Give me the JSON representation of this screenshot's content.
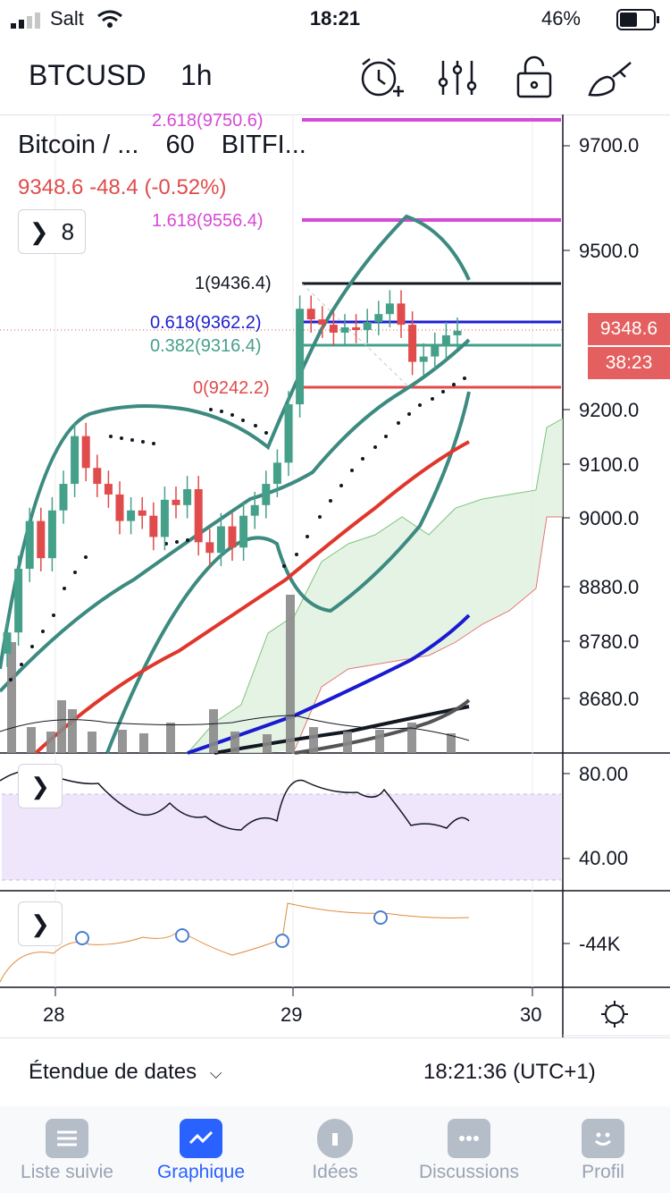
{
  "status": {
    "carrier": "Salt",
    "time": "18:21",
    "battery": "46%"
  },
  "header": {
    "symbol": "BTCUSD",
    "timeframe": "1h"
  },
  "legend": {
    "title": "Bitcoin / ...",
    "interval": "60",
    "exchange": "BITFI...",
    "price_line": "9348.6  -48.4 (-0.52%)",
    "indicators_count": "8"
  },
  "fib": {
    "l2618": "2.618(9750.6)",
    "l1618": "1.618(9556.4)",
    "l1": "1(9436.4)",
    "l0618": "0.618(9362.2)",
    "l0382": "0.382(9316.4)",
    "l0": "0(9242.2)"
  },
  "price_axis": [
    "9700.0",
    "9500.0",
    "9200.0",
    "9100.0",
    "9000.0",
    "8880.0",
    "8780.0",
    "8680.0"
  ],
  "last_price": "9348.6",
  "countdown": "38:23",
  "rsi_axis": [
    "80.00",
    "40.00"
  ],
  "obv_axis": [
    "-44K"
  ],
  "time_axis": [
    "28",
    "29",
    "30"
  ],
  "date_range_label": "Étendue de dates",
  "clock": "18:21:36 (UTC+1)",
  "tabs": [
    {
      "label": "Liste suivie",
      "icon": "list-icon"
    },
    {
      "label": "Graphique",
      "icon": "chart-icon"
    },
    {
      "label": "Idées",
      "icon": "lightbulb-icon"
    },
    {
      "label": "Discussions",
      "icon": "chat-icon"
    },
    {
      "label": "Profil",
      "icon": "smile-icon"
    }
  ],
  "colors": {
    "up": "#45a08a",
    "down": "#e04b4b",
    "fib_ext": "#d64ad6",
    "fib_mid": "#2020d0"
  },
  "chart_data": {
    "type": "candlestick",
    "note": "",
    "close": [
      8780,
      8900,
      8990,
      8920,
      9010,
      9060,
      9150,
      9090,
      9060,
      9040,
      8990,
      9010,
      9000,
      8960,
      9030,
      9020,
      9050,
      8950,
      8930,
      8980,
      8940,
      9000,
      9020,
      9060,
      9100,
      9210,
      9390,
      9370,
      9360,
      9345,
      9355,
      9350,
      9365,
      9380,
      9400,
      9360,
      9290,
      9300,
      9320,
      9340,
      9348.6
    ]
  }
}
